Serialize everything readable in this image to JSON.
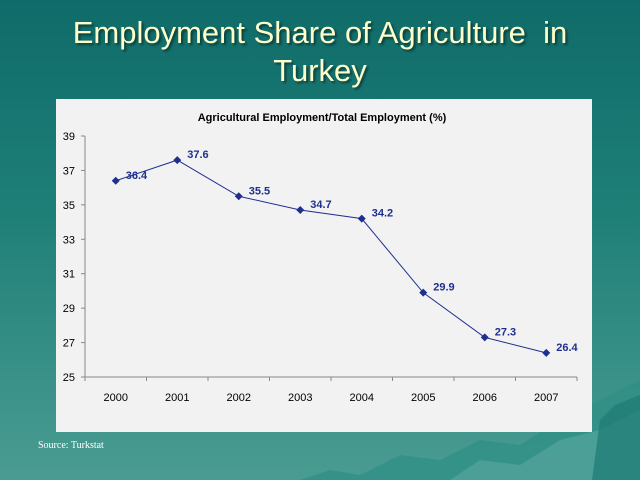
{
  "slide": {
    "title_line1": "Employment Share of Agriculture  in",
    "title_line2": "Turkey",
    "source": "Source: Turkstat"
  },
  "colors": {
    "background": "#1f8078",
    "title": "#ffffcc",
    "series": "#1f2f8f",
    "chart_panel": "#f2f2f2"
  },
  "chart_data": {
    "type": "line",
    "title": "Agricultural Employment/Total Employment (%)",
    "xlabel": "",
    "ylabel": "",
    "categories": [
      "2000",
      "2001",
      "2002",
      "2003",
      "2004",
      "2005",
      "2006",
      "2007"
    ],
    "series": [
      {
        "values": [
          36.4,
          37.6,
          35.5,
          34.7,
          34.2,
          29.9,
          27.3,
          26.4
        ]
      }
    ],
    "data_labels": [
      "36.4",
      "37.6",
      "35.5",
      "34.7",
      "34.2",
      "29.9",
      "27.3",
      "26.4"
    ],
    "ylim": [
      25,
      39
    ],
    "yticks": [
      25,
      27,
      29,
      31,
      33,
      35,
      37,
      39
    ],
    "ytick_labels": [
      "25",
      "27",
      "29",
      "31",
      "33",
      "35",
      "37",
      "39"
    ],
    "grid": false,
    "legend": "none",
    "marker": "diamond"
  }
}
